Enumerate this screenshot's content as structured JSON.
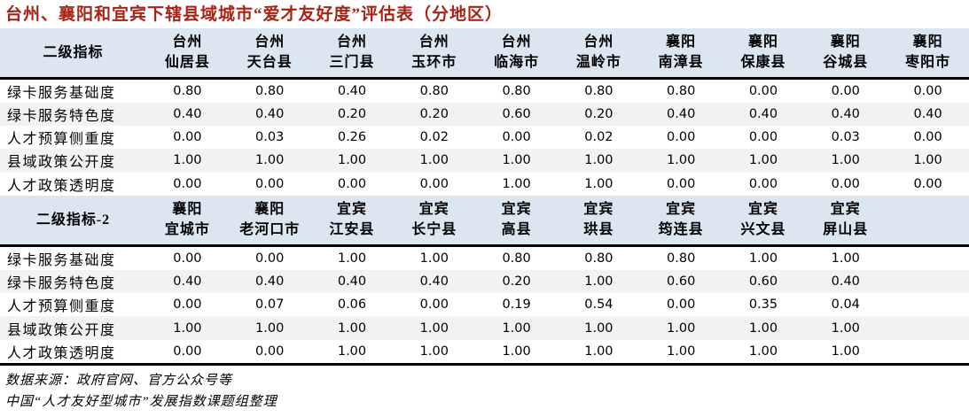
{
  "title": "台州、襄阳和宜宾下辖县域城市“爱才友好度”评估表（分地区）",
  "colors": {
    "title_color": "#A82315",
    "header_bg": "#DCE6F1",
    "stripe_bg": "#F2F2F2",
    "border_color": "#000000"
  },
  "chart_data": {
    "type": "table",
    "title": "台州、襄阳和宜宾下辖县域城市“爱才友好度”评估表（分地区）",
    "sections": [
      {
        "header_label": "二级指标",
        "columns": [
          {
            "prefecture": "台州",
            "county": "仙居县"
          },
          {
            "prefecture": "台州",
            "county": "天台县"
          },
          {
            "prefecture": "台州",
            "county": "三门县"
          },
          {
            "prefecture": "台州",
            "county": "玉环市"
          },
          {
            "prefecture": "台州",
            "county": "临海市"
          },
          {
            "prefecture": "台州",
            "county": "温岭市"
          },
          {
            "prefecture": "襄阳",
            "county": "南漳县"
          },
          {
            "prefecture": "襄阳",
            "county": "保康县"
          },
          {
            "prefecture": "襄阳",
            "county": "谷城县"
          },
          {
            "prefecture": "襄阳",
            "county": "枣阳市"
          }
        ],
        "rows": [
          {
            "label": "绿卡服务基础度",
            "values": [
              "0.80",
              "0.80",
              "0.40",
              "0.80",
              "0.80",
              "0.80",
              "0.80",
              "0.00",
              "0.00",
              "0.00"
            ]
          },
          {
            "label": "绿卡服务特色度",
            "values": [
              "0.40",
              "0.40",
              "0.20",
              "0.20",
              "0.60",
              "0.20",
              "0.40",
              "0.40",
              "0.40",
              "0.40"
            ]
          },
          {
            "label": "人才预算侧重度",
            "values": [
              "0.00",
              "0.03",
              "0.26",
              "0.02",
              "0.00",
              "0.02",
              "0.00",
              "0.00",
              "0.03",
              "0.00"
            ]
          },
          {
            "label": "县域政策公开度",
            "values": [
              "1.00",
              "1.00",
              "1.00",
              "1.00",
              "1.00",
              "1.00",
              "1.00",
              "1.00",
              "1.00",
              "1.00"
            ]
          },
          {
            "label": "人才政策透明度",
            "values": [
              "0.00",
              "0.00",
              "0.00",
              "0.00",
              "1.00",
              "1.00",
              "0.00",
              "0.00",
              "0.00",
              "0.00"
            ]
          }
        ]
      },
      {
        "header_label": "二级指标-2",
        "columns": [
          {
            "prefecture": "襄阳",
            "county": "宜城市"
          },
          {
            "prefecture": "襄阳",
            "county": "老河口市"
          },
          {
            "prefecture": "宜宾",
            "county": "江安县"
          },
          {
            "prefecture": "宜宾",
            "county": "长宁县"
          },
          {
            "prefecture": "宜宾",
            "county": "高县"
          },
          {
            "prefecture": "宜宾",
            "county": "珙县"
          },
          {
            "prefecture": "宜宾",
            "county": "筠连县"
          },
          {
            "prefecture": "宜宾",
            "county": "兴文县"
          },
          {
            "prefecture": "宜宾",
            "county": "屏山县"
          }
        ],
        "rows": [
          {
            "label": "绿卡服务基础度",
            "values": [
              "0.00",
              "0.00",
              "1.00",
              "1.00",
              "0.80",
              "0.80",
              "0.80",
              "1.00",
              "1.00"
            ]
          },
          {
            "label": "绿卡服务特色度",
            "values": [
              "0.40",
              "0.40",
              "0.40",
              "0.40",
              "0.20",
              "1.00",
              "0.60",
              "0.60",
              "0.40"
            ]
          },
          {
            "label": "人才预算侧重度",
            "values": [
              "0.00",
              "0.07",
              "0.06",
              "0.00",
              "0.19",
              "0.54",
              "0.00",
              "0.35",
              "0.04"
            ]
          },
          {
            "label": "县域政策公开度",
            "values": [
              "1.00",
              "1.00",
              "1.00",
              "1.00",
              "1.00",
              "1.00",
              "1.00",
              "1.00",
              "1.00"
            ]
          },
          {
            "label": "人才政策透明度",
            "values": [
              "0.00",
              "0.00",
              "1.00",
              "1.00",
              "1.00",
              "1.00",
              "1.00",
              "1.00",
              "1.00"
            ]
          }
        ]
      }
    ]
  },
  "footnotes": [
    "数据来源：政府官网、官方公众号等",
    "中国“人才友好型城市”发展指数课题组整理"
  ]
}
